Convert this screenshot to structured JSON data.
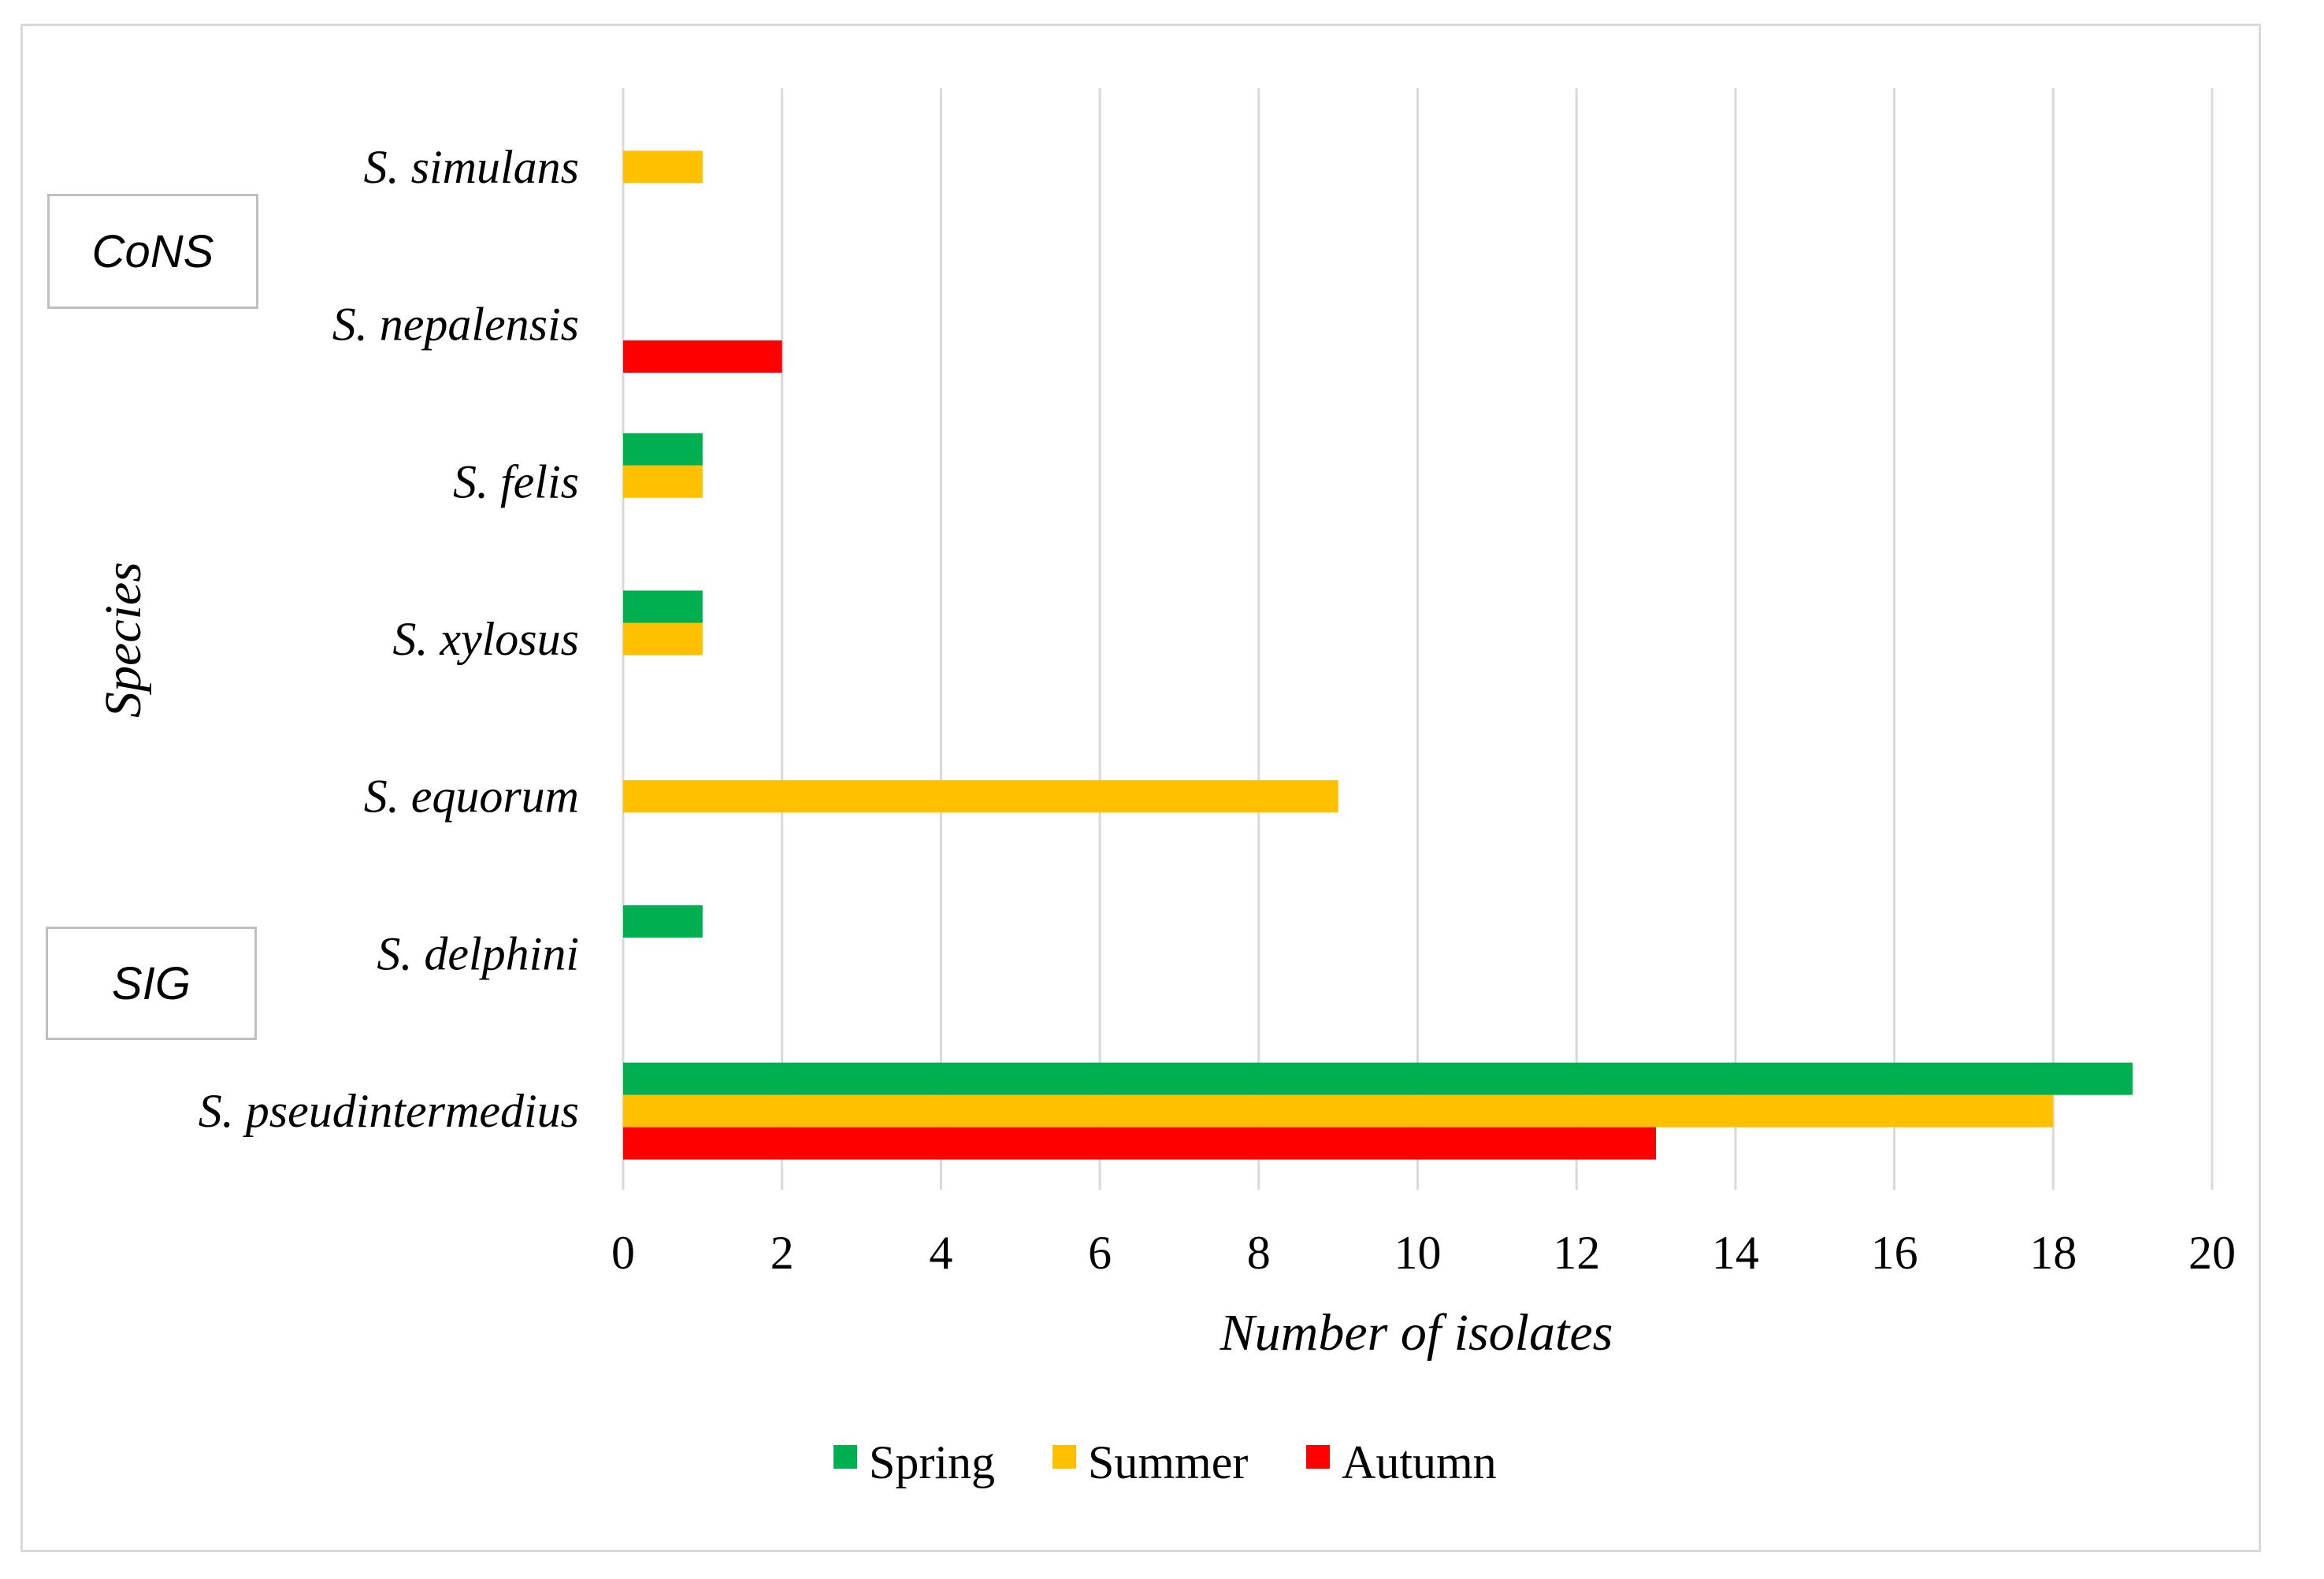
{
  "chart_data": {
    "type": "bar",
    "orientation": "horizontal",
    "title": "",
    "xlabel": "Number of isolates",
    "ylabel": "Species",
    "xlim": [
      0,
      20
    ],
    "xticks": [
      0,
      2,
      4,
      6,
      8,
      10,
      12,
      14,
      16,
      18,
      20
    ],
    "grid": true,
    "legend_position": "bottom",
    "categories": [
      "S. simulans",
      "S. nepalensis",
      "S. felis",
      "S. xylosus",
      "S. equorum",
      "S. delphini",
      "S. pseudintermedius"
    ],
    "series": [
      {
        "name": "Spring",
        "color": "#00b050",
        "values": [
          0,
          0,
          1,
          1,
          0,
          1,
          19
        ]
      },
      {
        "name": "Summer",
        "color": "#ffc000",
        "values": [
          1,
          0,
          1,
          1,
          9,
          0,
          18
        ]
      },
      {
        "name": "Autumn",
        "color": "#ff0000",
        "values": [
          0,
          2,
          0,
          0,
          0,
          0,
          13
        ]
      }
    ],
    "group_labels": [
      {
        "label": "CoNS",
        "anchor_category": "S. simulans"
      },
      {
        "label": "SIG",
        "anchor_category": "S. delphini"
      }
    ]
  }
}
